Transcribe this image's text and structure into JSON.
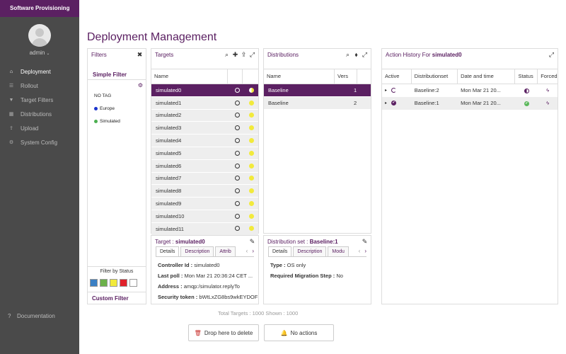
{
  "app": {
    "brand": "Software Provisioning",
    "user": "admin"
  },
  "nav": [
    {
      "label": "Deployment",
      "icon": "home-icon",
      "active": true
    },
    {
      "label": "Rollout",
      "icon": "list-icon"
    },
    {
      "label": "Target Filters",
      "icon": "filter-icon"
    },
    {
      "label": "Distributions",
      "icon": "box-icon"
    },
    {
      "label": "Upload",
      "icon": "upload-icon"
    },
    {
      "label": "System Config",
      "icon": "gear-icon"
    }
  ],
  "documentation": "Documentation",
  "page_title": "Deployment Management",
  "filters": {
    "title": "Filters",
    "simple": "Simple Filter",
    "tags": [
      {
        "label": "NO TAG",
        "color": ""
      },
      {
        "label": "Europe",
        "color": "#1a33cc"
      },
      {
        "label": "Simulated",
        "color": "#4caf50"
      }
    ],
    "status_label": "Filter by Status",
    "status_colors": [
      "#3a7fc4",
      "#6cb14a",
      "#f2ea3b",
      "#e0202a",
      "#ffffff"
    ],
    "custom": "Custom Filter"
  },
  "targets": {
    "title": "Targets",
    "col_name": "Name",
    "rows": [
      "simulated0",
      "simulated1",
      "simulated2",
      "simulated3",
      "simulated4",
      "simulated5",
      "simulated6",
      "simulated7",
      "simulated8",
      "simulated9",
      "simulated10",
      "simulated11"
    ],
    "selected": "simulated0"
  },
  "distributions": {
    "title": "Distributions",
    "col_name": "Name",
    "col_version": "Vers",
    "rows": [
      {
        "name": "Baseline",
        "version": "1"
      },
      {
        "name": "Baseline",
        "version": "2"
      }
    ]
  },
  "target_detail": {
    "title_label": "Target : ",
    "title_value": "simulated0",
    "tabs": [
      "Details",
      "Description",
      "Attrib"
    ],
    "fields": [
      {
        "label": "Controller Id : ",
        "value": "simulated0"
      },
      {
        "label": "Last poll : ",
        "value": "Mon Mar 21 20:36:24 CET ..."
      },
      {
        "label": "Address : ",
        "value": "amqp:/simulator.replyTo"
      },
      {
        "label": "Security token : ",
        "value": "bWtLxZG8bs9wkEYDOF"
      }
    ]
  },
  "dist_detail": {
    "title_label": "Distribution set : ",
    "title_value": "Baseline:1",
    "tabs": [
      "Details",
      "Description",
      "Modu"
    ],
    "fields": [
      {
        "label": "Type : ",
        "value": "OS only"
      },
      {
        "label": "Required Migration Step : ",
        "value": "No"
      }
    ]
  },
  "action_history": {
    "title_label": "Action History For ",
    "title_value": "simulated0",
    "columns": [
      "Active",
      "Distributionset",
      "Date and time",
      "Status",
      "Forced"
    ],
    "rows": [
      {
        "distset": "Baseline:2",
        "date": "Mon Mar 21 20...",
        "status": "running"
      },
      {
        "distset": "Baseline:1",
        "date": "Mon Mar 21 20...",
        "status": "finished"
      }
    ]
  },
  "total": "Total Targets : 1000 Shown : 1000",
  "buttons": {
    "delete": "Drop here to delete",
    "actions": "No actions"
  },
  "colors": {
    "brand": "#5b2062",
    "sidebar": "#4a4a4a"
  }
}
